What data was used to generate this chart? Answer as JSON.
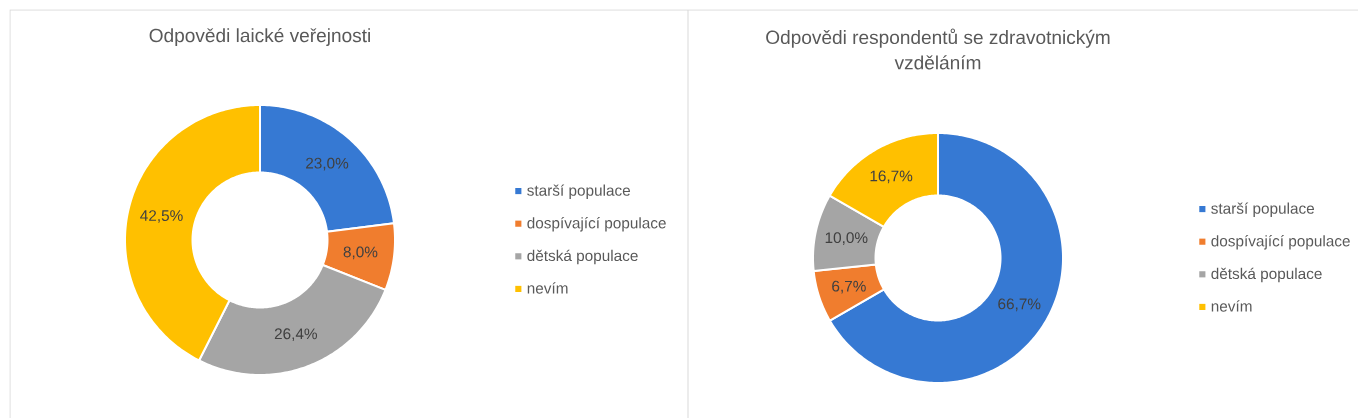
{
  "chart_data": [
    {
      "type": "donut",
      "title": "Odpovědi laické veřejnosti",
      "categories": [
        "starší populace",
        "dospívající populace",
        "dětská populace",
        "nevím"
      ],
      "values": [
        23.0,
        8.0,
        26.4,
        42.5
      ],
      "colors": [
        "#3679d3",
        "#f07d2e",
        "#a5a5a5",
        "#ffc000"
      ],
      "value_labels": [
        "23,0%",
        "8,0%",
        "26,4%",
        "42,5%"
      ],
      "legend": "right"
    },
    {
      "type": "donut",
      "title": "Odpovědi respondentů se zdravotnickým vzděláním",
      "categories": [
        "starší populace",
        "dospívající populace",
        "dětská populace",
        "nevím"
      ],
      "values": [
        66.7,
        6.7,
        10.0,
        16.7
      ],
      "colors": [
        "#3679d3",
        "#f07d2e",
        "#a5a5a5",
        "#ffc000"
      ],
      "value_labels": [
        "66,7%",
        "6,7%",
        "10,0%",
        "16,7%"
      ],
      "legend": "right"
    }
  ]
}
